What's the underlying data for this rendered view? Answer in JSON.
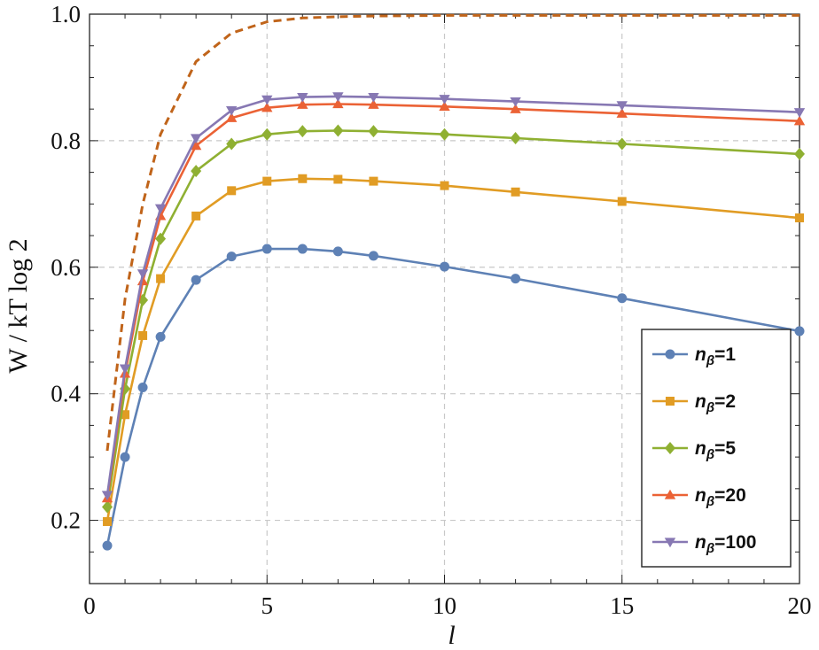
{
  "chart_data": {
    "type": "line",
    "xlabel": "l",
    "ylabel": "W / kT log 2",
    "xlim": [
      0,
      20
    ],
    "ylim": [
      0.1,
      1.0
    ],
    "xticks": [
      "0",
      "5",
      "10",
      "15",
      "20"
    ],
    "yticks": [
      "0.2",
      "0.4",
      "0.6",
      "0.8",
      "1.0"
    ],
    "xtick_values": [
      0,
      5,
      10,
      15,
      20
    ],
    "ytick_values": [
      0.2,
      0.4,
      0.6,
      0.8,
      1.0
    ],
    "grid": "dashed, at major ticks",
    "legend_placement": "bottom-right",
    "series": [
      {
        "name": "nβ=1",
        "label_main": "n",
        "label_sub": "β",
        "label_tail": "=1",
        "color": "#5e81b5",
        "marker": "circle",
        "x": [
          0.5,
          1,
          1.5,
          2,
          3,
          4,
          5,
          6,
          7,
          8,
          10,
          12,
          15,
          20
        ],
        "y": [
          0.16,
          0.3,
          0.41,
          0.49,
          0.58,
          0.617,
          0.629,
          0.629,
          0.625,
          0.618,
          0.601,
          0.582,
          0.551,
          0.499
        ]
      },
      {
        "name": "nβ=2",
        "label_main": "n",
        "label_sub": "β",
        "label_tail": "=2",
        "color": "#e19c24",
        "marker": "square",
        "x": [
          0.5,
          1,
          1.5,
          2,
          3,
          4,
          5,
          6,
          7,
          8,
          10,
          12,
          15,
          20
        ],
        "y": [
          0.198,
          0.367,
          0.492,
          0.582,
          0.681,
          0.721,
          0.736,
          0.74,
          0.739,
          0.736,
          0.729,
          0.719,
          0.704,
          0.678
        ]
      },
      {
        "name": "nβ=5",
        "label_main": "n",
        "label_sub": "β",
        "label_tail": "=5",
        "color": "#8fb032",
        "marker": "diamond",
        "x": [
          0.5,
          1,
          1.5,
          2,
          3,
          4,
          5,
          6,
          7,
          8,
          10,
          12,
          15,
          20
        ],
        "y": [
          0.221,
          0.408,
          0.548,
          0.645,
          0.752,
          0.795,
          0.81,
          0.815,
          0.816,
          0.815,
          0.81,
          0.804,
          0.795,
          0.779
        ]
      },
      {
        "name": "nβ=20",
        "label_main": "n",
        "label_sub": "β",
        "label_tail": "=20",
        "color": "#eb6235",
        "marker": "triangle-up",
        "x": [
          0.5,
          1,
          1.5,
          2,
          3,
          4,
          5,
          6,
          7,
          8,
          10,
          12,
          15,
          20
        ],
        "y": [
          0.235,
          0.432,
          0.578,
          0.681,
          0.792,
          0.836,
          0.852,
          0.857,
          0.858,
          0.857,
          0.854,
          0.85,
          0.843,
          0.831
        ]
      },
      {
        "name": "nβ=100",
        "label_main": "n",
        "label_sub": "β",
        "label_tail": "=100",
        "color": "#8778b3",
        "marker": "triangle-down",
        "x": [
          0.5,
          1,
          1.5,
          2,
          3,
          4,
          5,
          6,
          7,
          8,
          10,
          12,
          15,
          20
        ],
        "y": [
          0.24,
          0.44,
          0.59,
          0.693,
          0.804,
          0.848,
          0.865,
          0.869,
          0.87,
          0.869,
          0.866,
          0.862,
          0.856,
          0.845
        ]
      }
    ],
    "limit_curve": {
      "style": "dashed",
      "color": "#c0641a",
      "x": [
        0.5,
        1,
        1.5,
        2,
        3,
        4,
        5,
        6,
        7,
        8,
        10,
        12,
        15,
        20
      ],
      "y": [
        0.31,
        0.55,
        0.7,
        0.81,
        0.925,
        0.97,
        0.988,
        0.994,
        0.996,
        0.997,
        0.998,
        0.998,
        0.998,
        0.998
      ]
    }
  }
}
